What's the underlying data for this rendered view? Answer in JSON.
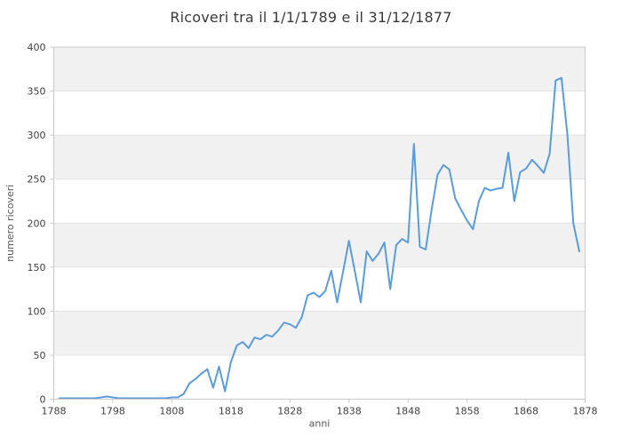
{
  "chart_data": {
    "type": "line",
    "title": "Ricoveri tra il 1/1/1789 e il 31/12/1877",
    "xlabel": "anni",
    "ylabel": "numero ricoveri",
    "xlim": [
      1788,
      1878
    ],
    "ylim": [
      0,
      400
    ],
    "x_ticks": [
      1788,
      1798,
      1808,
      1818,
      1828,
      1838,
      1848,
      1858,
      1868,
      1878
    ],
    "y_ticks": [
      0,
      50,
      100,
      150,
      200,
      250,
      300,
      350,
      400
    ],
    "grid": "horizontal-bands",
    "legend": "none",
    "series_name": "ricoveri",
    "x": [
      1789,
      1790,
      1791,
      1792,
      1793,
      1794,
      1795,
      1796,
      1797,
      1798,
      1799,
      1800,
      1801,
      1802,
      1803,
      1804,
      1805,
      1806,
      1807,
      1808,
      1809,
      1810,
      1811,
      1812,
      1813,
      1814,
      1815,
      1816,
      1817,
      1818,
      1819,
      1820,
      1821,
      1822,
      1823,
      1824,
      1825,
      1826,
      1827,
      1828,
      1829,
      1830,
      1831,
      1832,
      1833,
      1834,
      1835,
      1836,
      1837,
      1838,
      1839,
      1840,
      1841,
      1842,
      1843,
      1844,
      1845,
      1846,
      1847,
      1848,
      1849,
      1850,
      1851,
      1852,
      1853,
      1854,
      1855,
      1856,
      1857,
      1858,
      1859,
      1860,
      1861,
      1862,
      1863,
      1864,
      1865,
      1866,
      1867,
      1868,
      1869,
      1870,
      1871,
      1872,
      1873,
      1874,
      1875,
      1876,
      1877
    ],
    "values": [
      1,
      1,
      1,
      1,
      1,
      1,
      1,
      2,
      3,
      2,
      1,
      1,
      1,
      1,
      1,
      1,
      1,
      1,
      1,
      2,
      2,
      6,
      18,
      23,
      29,
      34,
      13,
      37,
      9,
      42,
      61,
      65,
      58,
      70,
      68,
      73,
      71,
      78,
      87,
      85,
      81,
      93,
      118,
      121,
      116,
      123,
      146,
      110,
      145,
      180,
      145,
      110,
      168,
      157,
      165,
      178,
      125,
      175,
      182,
      178,
      290,
      173,
      170,
      215,
      255,
      266,
      261,
      228,
      215,
      203,
      193,
      225,
      240,
      237,
      239,
      240,
      280,
      225,
      258,
      262,
      272,
      265,
      257,
      279,
      362,
      365,
      300,
      200,
      168
    ],
    "colors": {
      "line": "#5b9cdd",
      "band": "#f1f1f1",
      "gridline": "#e2e2e2",
      "plot_border": "#c9c9c9",
      "tick_text": "#3f3f3f",
      "axis_title_text": "#555555",
      "title_text": "#3a3a3a",
      "background": "#ffffff"
    }
  }
}
